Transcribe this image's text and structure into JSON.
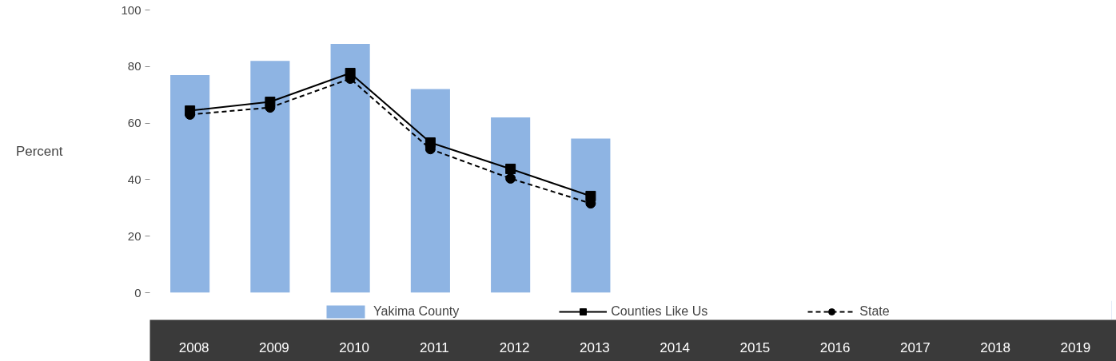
{
  "chart_data": {
    "type": "bar",
    "ylabel": "Percent",
    "categories": [
      "2008",
      "2009",
      "2010",
      "2011",
      "2012",
      "2013",
      "2014",
      "2015",
      "2016",
      "2017",
      "2018",
      "2019"
    ],
    "series": [
      {
        "name": "Yakima County",
        "color": "#8eb4e3",
        "values": [
          77,
          82,
          88,
          72,
          62,
          54.5,
          null,
          null,
          null,
          null,
          null,
          null
        ]
      },
      {
        "name": "Counties Like Us",
        "type": "line",
        "color": "#000000",
        "marker": "square",
        "line_style": "solid",
        "values": [
          64.4,
          67.5,
          77.7,
          53.1,
          43.8,
          34.2,
          null,
          null,
          null,
          null,
          null,
          null
        ]
      },
      {
        "name": "State",
        "type": "line",
        "color": "#000000",
        "marker": "circle",
        "line_style": "dashed",
        "values": [
          63,
          65.5,
          75.7,
          50.8,
          40.4,
          31.6,
          null,
          null,
          null,
          null,
          null,
          null
        ]
      }
    ],
    "ylim": [
      0,
      100
    ],
    "yticks": [
      0,
      20,
      40,
      60,
      80,
      100
    ],
    "grid": false,
    "legend": "bottom"
  }
}
